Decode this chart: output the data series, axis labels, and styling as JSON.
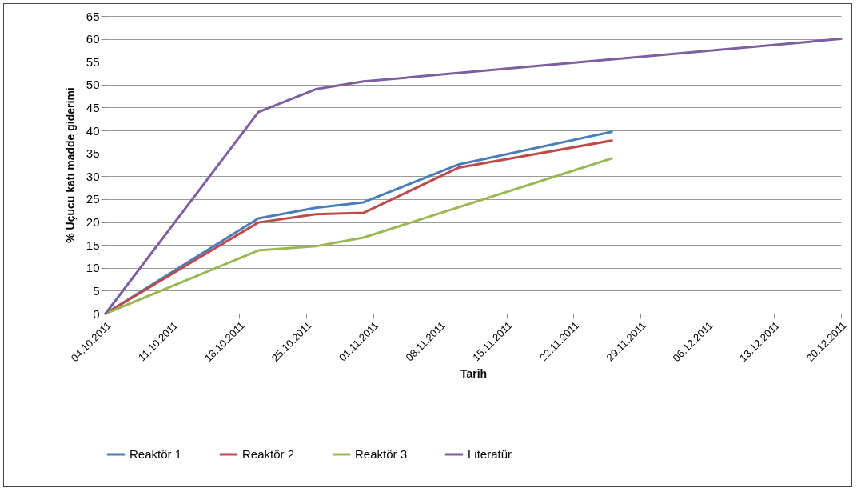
{
  "chart_data": {
    "type": "line",
    "xlabel": "Tarih",
    "ylabel": "% Uçucu katı madde giderimi",
    "xlim": [
      "2011-10-04",
      "2011-12-20"
    ],
    "xticks": [
      {
        "value": "2011-10-04",
        "label": "04.10.2011"
      },
      {
        "value": "2011-10-11",
        "label": "11.10.2011"
      },
      {
        "value": "2011-10-18",
        "label": "18.10.2011"
      },
      {
        "value": "2011-10-25",
        "label": "25.10.2011"
      },
      {
        "value": "2011-11-01",
        "label": "01.11.2011"
      },
      {
        "value": "2011-11-08",
        "label": "08.11.2011"
      },
      {
        "value": "2011-11-15",
        "label": "15.11.2011"
      },
      {
        "value": "2011-11-22",
        "label": "22.11.2011"
      },
      {
        "value": "2011-11-29",
        "label": "29.11.2011"
      },
      {
        "value": "2011-12-06",
        "label": "06.12.2011"
      },
      {
        "value": "2011-12-13",
        "label": "13.12.2011"
      },
      {
        "value": "2011-12-20",
        "label": "20.12.2011"
      }
    ],
    "ylim": [
      0,
      65
    ],
    "yticks": [
      0,
      5,
      10,
      15,
      20,
      25,
      30,
      35,
      40,
      45,
      50,
      55,
      60,
      65
    ],
    "grid": "y",
    "legend": "bottom",
    "marker": "none",
    "line_style": "solid",
    "series": [
      {
        "name": "Reaktör 1",
        "color": "#4a7ebb",
        "x": [
          "2011-10-04",
          "2011-10-20",
          "2011-10-26",
          "2011-10-31",
          "2011-11-10",
          "2011-11-26"
        ],
        "values": [
          0,
          20.8,
          23.1,
          24.3,
          32.6,
          39.7
        ]
      },
      {
        "name": "Reaktör 2",
        "color": "#be4b48",
        "x": [
          "2011-10-04",
          "2011-10-20",
          "2011-10-26",
          "2011-10-31",
          "2011-11-10",
          "2011-11-26"
        ],
        "values": [
          0,
          19.9,
          21.7,
          22.0,
          31.9,
          37.8
        ]
      },
      {
        "name": "Reaktör 3",
        "color": "#98b954",
        "x": [
          "2011-10-04",
          "2011-10-20",
          "2011-10-26",
          "2011-10-31",
          "2011-11-26"
        ],
        "values": [
          0,
          13.8,
          14.7,
          16.6,
          33.9
        ]
      },
      {
        "name": "Literatür",
        "color": "#7d5fa0",
        "x": [
          "2011-10-04",
          "2011-10-20",
          "2011-10-26",
          "2011-10-31",
          "2011-12-20"
        ],
        "values": [
          0,
          44,
          49,
          50.7,
          60
        ]
      }
    ]
  }
}
